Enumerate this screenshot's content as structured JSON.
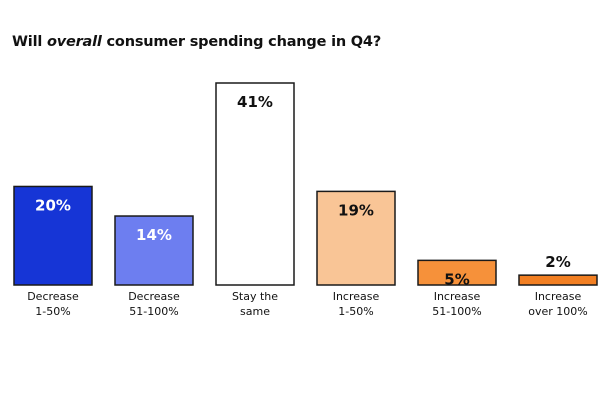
{
  "title": {
    "before": "Will ",
    "emphasis": "overall",
    "after": " consumer spending change in Q4?"
  },
  "chart_data": {
    "type": "bar",
    "title": "Will overall consumer spending change in Q4?",
    "categories": [
      [
        "Decrease",
        "1-50%"
      ],
      [
        "Decrease",
        "51-100%"
      ],
      [
        "Stay the",
        "same"
      ],
      [
        "Increase",
        "1-50%"
      ],
      [
        "Increase",
        "51-100%"
      ],
      [
        "Increase",
        "over 100%"
      ]
    ],
    "values": [
      20,
      14,
      41,
      19,
      5,
      2
    ],
    "labels": [
      "20%",
      "14%",
      "41%",
      "19%",
      "5%",
      "2%"
    ],
    "fill_colors": [
      "#1635d6",
      "#6d7ef0",
      "#ffffff",
      "#f9c596",
      "#f6913a",
      "#f27f22"
    ],
    "label_colors": [
      "#ffffff",
      "#ffffff",
      "#111111",
      "#111111",
      "#111111",
      "#111111"
    ],
    "label_position": [
      "inside",
      "inside",
      "inside",
      "inside",
      "inside",
      "above"
    ],
    "ylim": [
      0,
      41
    ],
    "xlabel": "",
    "ylabel": ""
  }
}
